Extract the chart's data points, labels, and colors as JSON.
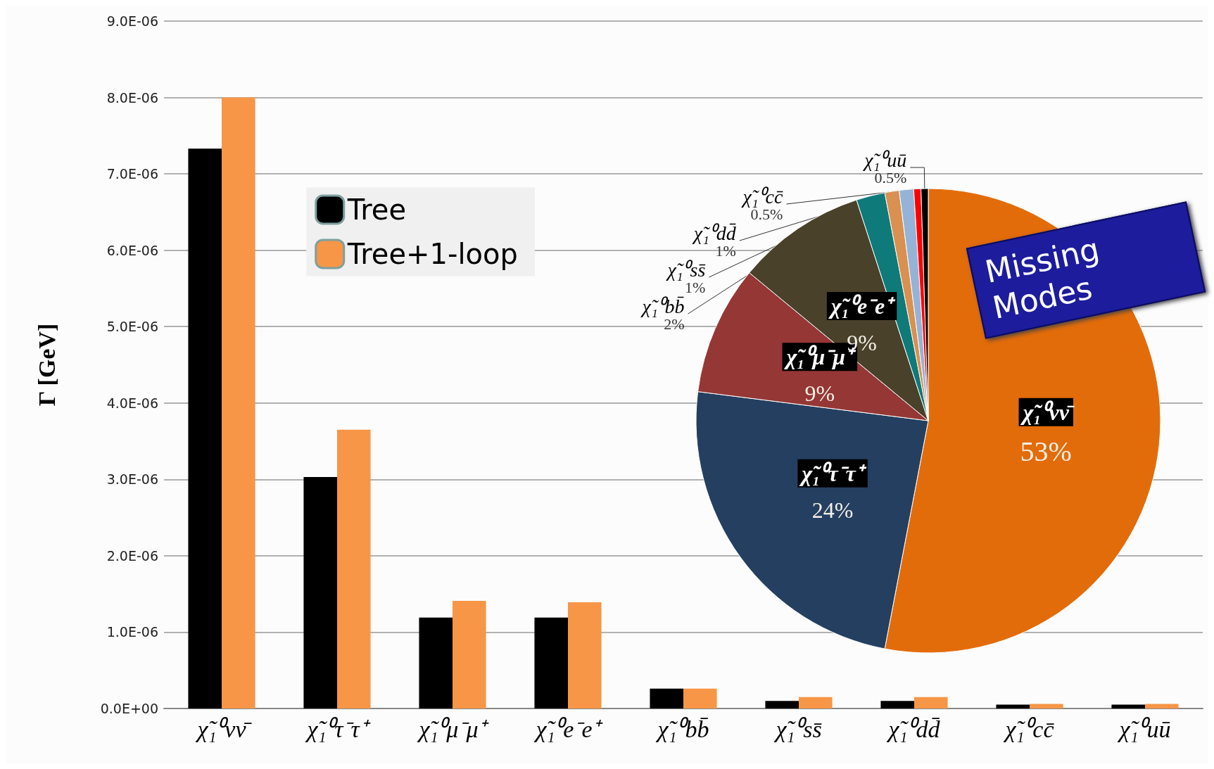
{
  "chart_data": [
    {
      "type": "bar",
      "ylabel": "Γ [GeV]",
      "categories": [
        "χ̃₁⁰νν̄",
        "χ̃₁⁰τ⁻τ⁺",
        "χ̃₁⁰μ⁻μ⁺",
        "χ̃₁⁰e⁻e⁺",
        "χ̃₁⁰bb̄",
        "χ̃₁⁰ss̄",
        "χ̃₁⁰dd̄",
        "χ̃₁⁰cc̄",
        "χ̃₁⁰uū"
      ],
      "series": [
        {
          "name": "Tree",
          "color": "#000000",
          "values": [
            7.33e-06,
            3.03e-06,
            1.19e-06,
            1.19e-06,
            2.6e-07,
            1e-07,
            1e-07,
            5e-08,
            5e-08
          ]
        },
        {
          "name": "Tree+1-loop",
          "color": "#f79646",
          "values": [
            8e-06,
            3.65e-06,
            1.41e-06,
            1.39e-06,
            2.6e-07,
            1.5e-07,
            1.5e-07,
            6e-08,
            6e-08
          ]
        }
      ],
      "ylim": [
        0,
        9e-06
      ],
      "yticks": [
        {
          "value": 0,
          "label": "0.0E+00"
        },
        {
          "value": 1e-06,
          "label": "1.0E-06"
        },
        {
          "value": 2e-06,
          "label": "2.0E-06"
        },
        {
          "value": 3e-06,
          "label": "3.0E-06"
        },
        {
          "value": 4e-06,
          "label": "4.0E-06"
        },
        {
          "value": 5e-06,
          "label": "5.0E-06"
        },
        {
          "value": 6e-06,
          "label": "6.0E-06"
        },
        {
          "value": 7e-06,
          "label": "7.0E-06"
        },
        {
          "value": 8e-06,
          "label": "8.0E-06"
        },
        {
          "value": 9e-06,
          "label": "9.0E-06"
        }
      ],
      "grid": "y",
      "legend": "top left"
    },
    {
      "type": "pie",
      "categories": [
        "χ̃₁⁰νν̄",
        "χ̃₁⁰τ⁻τ⁺",
        "χ̃₁⁰μ⁻μ⁺",
        "χ̃₁⁰e⁻e⁺",
        "χ̃₁⁰bb̄",
        "χ̃₁⁰ss̄",
        "χ̃₁⁰dd̄",
        "χ̃₁⁰cc̄",
        "χ̃₁⁰uū"
      ],
      "values": [
        53,
        24,
        9,
        9,
        2,
        1,
        1,
        0.5,
        0.5
      ],
      "value_labels": [
        "53%",
        "24%",
        "9%",
        "9%",
        "2%",
        "1%",
        "1%",
        "0.5%",
        "0.5%"
      ],
      "colors": [
        "#e36c0a",
        "#243f60",
        "#953735",
        "#4a412a",
        "#0f7a7a",
        "#d99050",
        "#95b3d7",
        "#ff0000",
        "#000000"
      ],
      "annotations": [
        "Missing Modes"
      ]
    }
  ]
}
